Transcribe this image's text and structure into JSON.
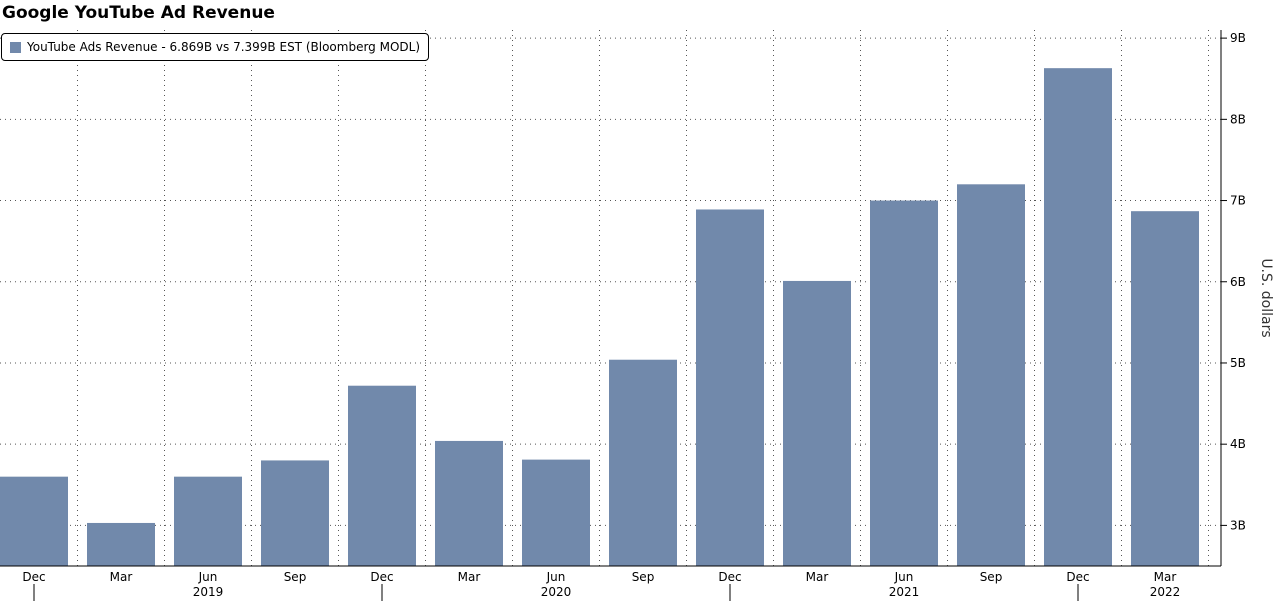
{
  "chart_data": {
    "type": "bar",
    "title": "Google YouTube Ad Revenue",
    "legend_label": "YouTube Ads Revenue - 6.869B vs 7.399B EST (Bloomberg MODL)",
    "legend_position": "top-left",
    "ylabel": "U.S. dollars",
    "y_axis_side": "right",
    "ylim": [
      2.5,
      9.1
    ],
    "y_ticks": [
      3,
      4,
      5,
      6,
      7,
      8,
      9
    ],
    "y_tick_labels": [
      "3B",
      "4B",
      "5B",
      "6B",
      "7B",
      "8B",
      "9B"
    ],
    "grid": true,
    "bar_color": "#7189ab",
    "categories": [
      "Dec",
      "Mar",
      "Jun",
      "Sep",
      "Dec",
      "Mar",
      "Jun",
      "Sep",
      "Dec",
      "Mar",
      "Jun",
      "Sep",
      "Dec",
      "Mar"
    ],
    "year_labels": [
      {
        "label": "2019",
        "index": 2
      },
      {
        "label": "2020",
        "index": 6
      },
      {
        "label": "2021",
        "index": 10
      },
      {
        "label": "2022",
        "index": 13
      }
    ],
    "series": [
      {
        "name": "YouTube Ads Revenue",
        "values": [
          3.6,
          3.03,
          3.6,
          3.8,
          4.72,
          4.04,
          3.81,
          5.04,
          6.89,
          6.01,
          7.0,
          7.2,
          8.63,
          6.869
        ]
      }
    ]
  }
}
